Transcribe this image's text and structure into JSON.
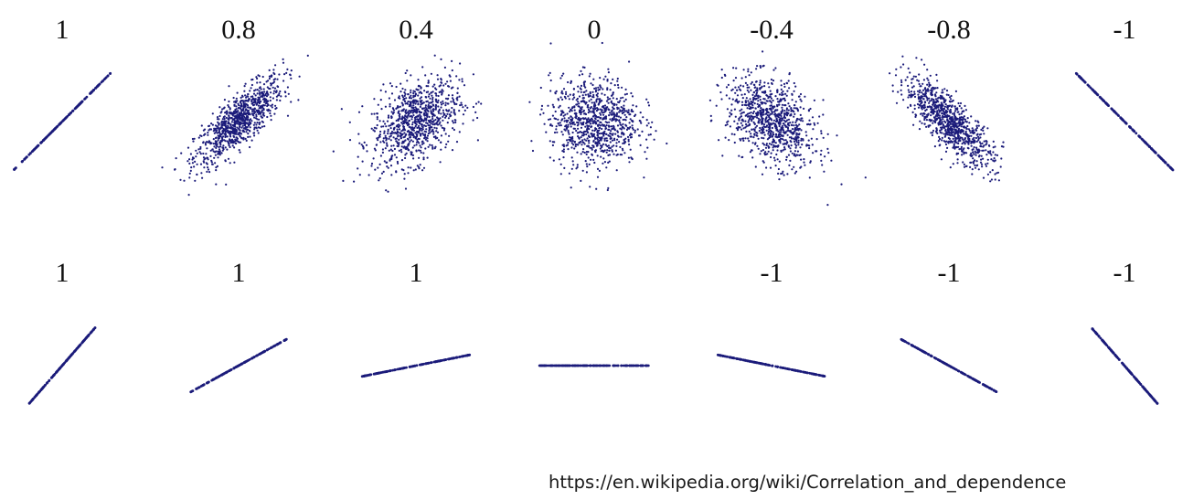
{
  "chart_data": [
    {
      "type": "scatter",
      "row": "top",
      "color": "#1b1b7a",
      "panels": [
        {
          "label": "1",
          "correlation": 1,
          "slope": 1
        },
        {
          "label": "0.8",
          "correlation": 0.8
        },
        {
          "label": "0.4",
          "correlation": 0.4
        },
        {
          "label": "0",
          "correlation": 0
        },
        {
          "label": "-0.4",
          "correlation": -0.4
        },
        {
          "label": "-0.8",
          "correlation": -0.8
        },
        {
          "label": "-1",
          "correlation": -1,
          "slope": -1
        }
      ]
    },
    {
      "type": "scatter",
      "row": "bottom",
      "color": "#1b1b7a",
      "panels": [
        {
          "label": "1",
          "correlation": 1,
          "slope": 1.15
        },
        {
          "label": "1",
          "correlation": 1,
          "slope": 0.55
        },
        {
          "label": "1",
          "correlation": 1,
          "slope": 0.2
        },
        {
          "label": "",
          "correlation": null,
          "slope": 0
        },
        {
          "label": "-1",
          "correlation": -1,
          "slope": -0.2
        },
        {
          "label": "-1",
          "correlation": -1,
          "slope": -0.55
        },
        {
          "label": "-1",
          "correlation": -1,
          "slope": -1.15
        }
      ]
    }
  ],
  "source": {
    "url": "https://en.wikipedia.org/wiki/Correlation_and_dependence"
  }
}
